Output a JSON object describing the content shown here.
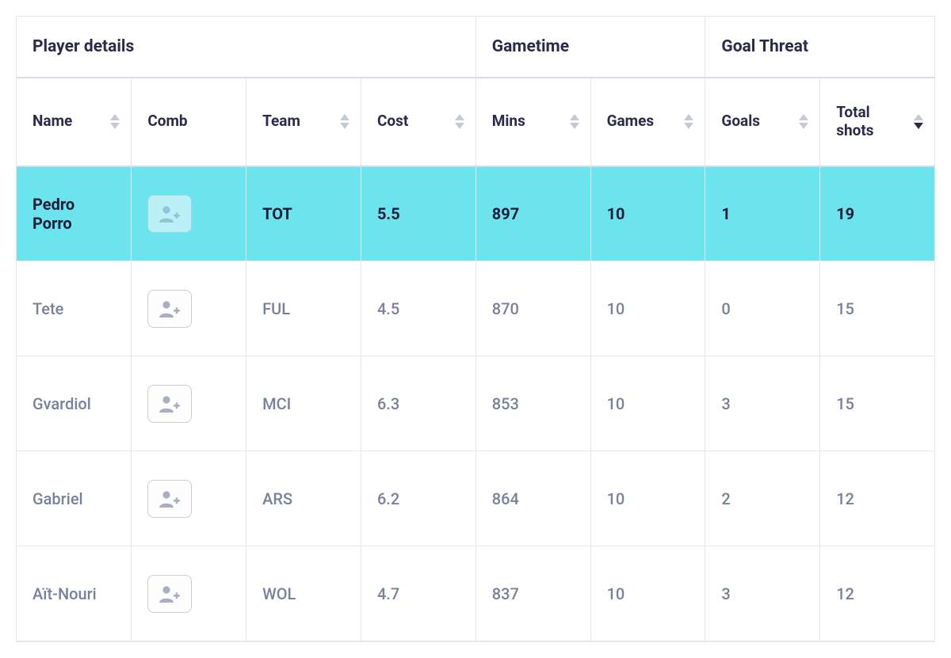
{
  "colors": {
    "text_primary": "#2a2a4a",
    "text_muted": "#78809a",
    "border": "#e5e7ef",
    "border_strong": "#d9dce6",
    "highlight_bg": "#6be4ee",
    "sort_inactive": "#c6cad6",
    "sort_active": "#2a2a4a",
    "icon_fill": "#a9afc0",
    "btn_border": "#c9cdd8"
  },
  "groups": [
    {
      "label": "Player details",
      "span": 4
    },
    {
      "label": "Gametime",
      "span": 2
    },
    {
      "label": "Goal Threat",
      "span": 2
    }
  ],
  "columns": [
    {
      "key": "name",
      "label": "Name",
      "sortable": true,
      "width_class": "c-name"
    },
    {
      "key": "comb",
      "label": "Comb",
      "sortable": false,
      "width_class": "c-comb"
    },
    {
      "key": "team",
      "label": "Team",
      "sortable": true,
      "width_class": "c-team"
    },
    {
      "key": "cost",
      "label": "Cost",
      "sortable": true,
      "width_class": "c-cost"
    },
    {
      "key": "mins",
      "label": "Mins",
      "sortable": true,
      "width_class": "c-mins"
    },
    {
      "key": "games",
      "label": "Games",
      "sortable": true,
      "width_class": "c-games"
    },
    {
      "key": "goals",
      "label": "Goals",
      "sortable": true,
      "width_class": "c-goals"
    },
    {
      "key": "total_shots",
      "label": "Total shots",
      "sortable": true,
      "width_class": "c-shots",
      "sorted": "desc"
    }
  ],
  "rows": [
    {
      "highlight": true,
      "name": "Pedro Porro",
      "team": "TOT",
      "cost": "5.5",
      "mins": "897",
      "games": "10",
      "goals": "1",
      "total_shots": "19"
    },
    {
      "highlight": false,
      "name": "Tete",
      "team": "FUL",
      "cost": "4.5",
      "mins": "870",
      "games": "10",
      "goals": "0",
      "total_shots": "15"
    },
    {
      "highlight": false,
      "name": "Gvardiol",
      "team": "MCI",
      "cost": "6.3",
      "mins": "853",
      "games": "10",
      "goals": "3",
      "total_shots": "15"
    },
    {
      "highlight": false,
      "name": "Gabriel",
      "team": "ARS",
      "cost": "6.2",
      "mins": "864",
      "games": "10",
      "goals": "2",
      "total_shots": "12"
    },
    {
      "highlight": false,
      "name": "Aït-Nouri",
      "team": "WOL",
      "cost": "4.7",
      "mins": "837",
      "games": "10",
      "goals": "3",
      "total_shots": "12"
    }
  ]
}
